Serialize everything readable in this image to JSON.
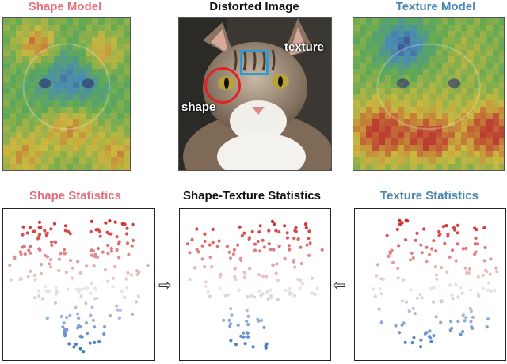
{
  "top_titles": {
    "shape_model": "Shape Model",
    "distorted_image": "Distorted Image",
    "texture_model": "Texture Model"
  },
  "bottom_titles": {
    "shape_statistics": "Shape Statistics",
    "shape_texture_statistics": "Shape-Texture Statistics",
    "texture_statistics": "Texture Statistics"
  },
  "annotations": {
    "texture_label": "texture",
    "shape_label": "shape"
  },
  "arrows": {
    "left": "⇨",
    "right": "⇦"
  },
  "colors": {
    "shape_title": "#e0707a",
    "texture_title": "#4a86b4",
    "neutral_title": "#111111",
    "texture_box": "#2e9ad8",
    "shape_circle": "#e02424",
    "point_red": "#d42a2a",
    "point_blue": "#2f6fc4"
  }
}
